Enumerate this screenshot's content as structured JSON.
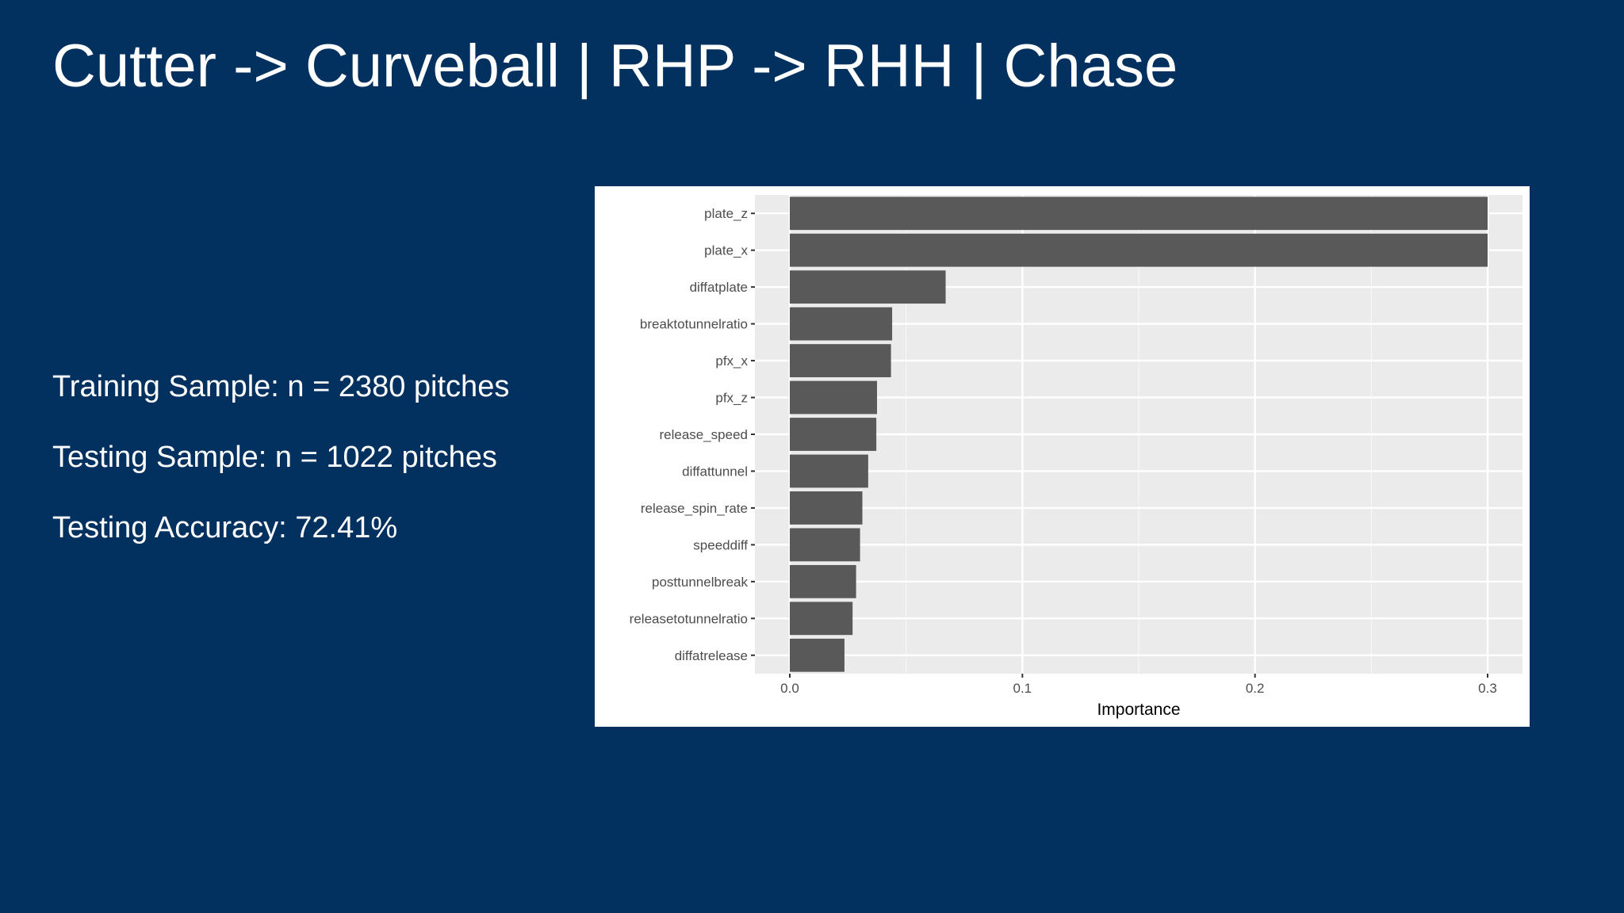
{
  "slide": {
    "title": "Cutter -> Curveball | RHP -> RHH | Chase"
  },
  "stats": [
    "Training Sample: n = 2380 pitches",
    "Testing Sample: n = 1022 pitches",
    "Testing Accuracy: 72.41%"
  ],
  "colors": {
    "background": "#023160",
    "panel": "#ebebeb",
    "bar": "#595959"
  },
  "chart_data": {
    "type": "bar",
    "orientation": "horizontal",
    "categories": [
      "plate_z",
      "plate_x",
      "diffatplate",
      "breaktotunnelratio",
      "pfx_x",
      "pfx_z",
      "release_speed",
      "diffattunnel",
      "release_spin_rate",
      "speeddiff",
      "posttunnelbreak",
      "releasetotunnelratio",
      "diffatrelease"
    ],
    "values": [
      0.3,
      0.3,
      0.067,
      0.044,
      0.0435,
      0.0375,
      0.0372,
      0.0337,
      0.0312,
      0.0302,
      0.0285,
      0.027,
      0.0235
    ],
    "xlabel": "Importance",
    "ylabel": "",
    "xlim": [
      -0.015,
      0.315
    ],
    "xticks": [
      0.0,
      0.1,
      0.2,
      0.3
    ],
    "xtick_labels": [
      "0.0",
      "0.1",
      "0.2",
      "0.3"
    ],
    "grid": true
  }
}
